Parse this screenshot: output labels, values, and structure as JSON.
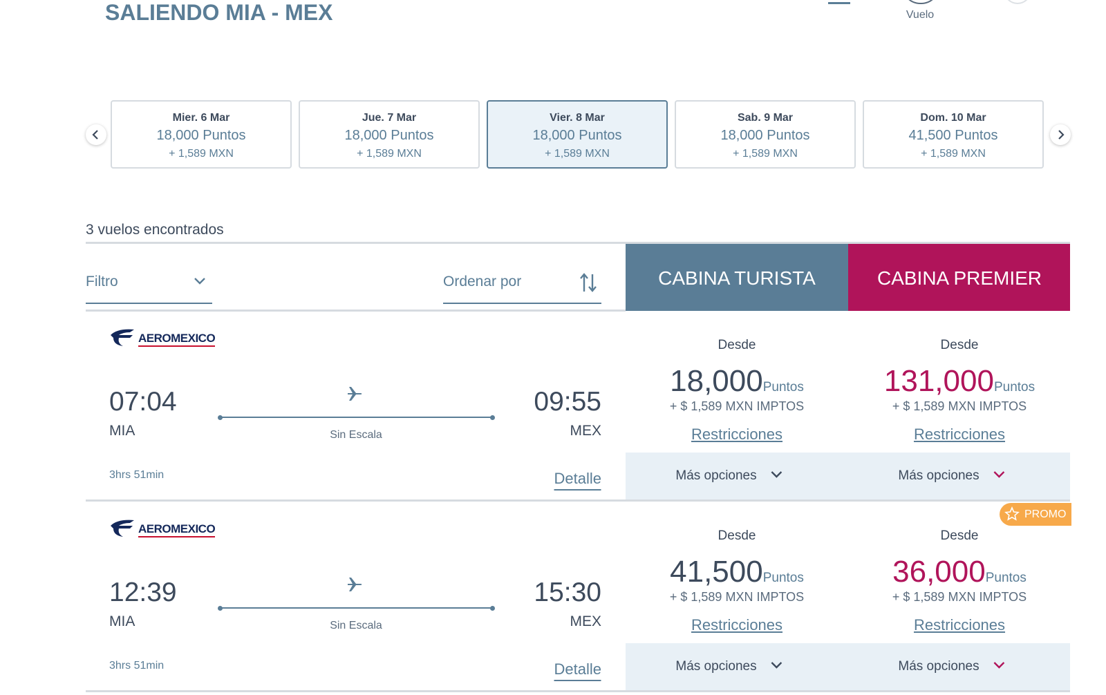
{
  "header": {
    "title": "SALIENDO MIA - MEX",
    "step_label": "Vuelo"
  },
  "dates": [
    {
      "day": "Mier. 6 Mar",
      "points": "18,000 Puntos",
      "cash": "+ 1,589 MXN",
      "selected": false
    },
    {
      "day": "Jue. 7 Mar",
      "points": "18,000 Puntos",
      "cash": "+ 1,589 MXN",
      "selected": false
    },
    {
      "day": "Vier. 8 Mar",
      "points": "18,000 Puntos",
      "cash": "+ 1,589 MXN",
      "selected": true
    },
    {
      "day": "Sab. 9 Mar",
      "points": "18,000 Puntos",
      "cash": "+ 1,589 MXN",
      "selected": false
    },
    {
      "day": "Dom. 10 Mar",
      "points": "41,500 Puntos",
      "cash": "+ 1,589 MXN",
      "selected": false
    }
  ],
  "results_count": "3 vuelos encontrados",
  "filter": "Filtro",
  "sort": "Ordenar por",
  "cabins": [
    "CABINA TURISTA",
    "CABINA PREMIER"
  ],
  "flights": [
    {
      "airline": "AEROMEXICO",
      "depart_time": "07:04",
      "depart_code": "MIA",
      "arrive_time": "09:55",
      "arrive_code": "MEX",
      "stops": "Sin Escala",
      "duration": "3hrs 51min",
      "detail": "Detalle",
      "fares": [
        {
          "from": "Desde",
          "points": "18,000",
          "unit": "Puntos",
          "taxes": "+ $ 1,589 MXN IMPTOS",
          "link": "Restricciones",
          "more": "Más opciones"
        },
        {
          "from": "Desde",
          "points": "131,000",
          "unit": "Puntos",
          "taxes": "+ $ 1,589 MXN IMPTOS",
          "link": "Restricciones",
          "more": "Más opciones"
        }
      ]
    },
    {
      "airline": "AEROMEXICO",
      "depart_time": "12:39",
      "depart_code": "MIA",
      "arrive_time": "15:30",
      "arrive_code": "MEX",
      "stops": "Sin Escala",
      "duration": "3hrs 51min",
      "detail": "Detalle",
      "promo": "PROMO",
      "fares": [
        {
          "from": "Desde",
          "points": "41,500",
          "unit": "Puntos",
          "taxes": "+ $ 1,589 MXN IMPTOS",
          "link": "Restricciones",
          "more": "Más opciones"
        },
        {
          "from": "Desde",
          "points": "36,000",
          "unit": "Puntos",
          "taxes": "+ $ 1,589 MXN IMPTOS",
          "link": "Restricciones",
          "more": "Más opciones"
        }
      ]
    }
  ]
}
